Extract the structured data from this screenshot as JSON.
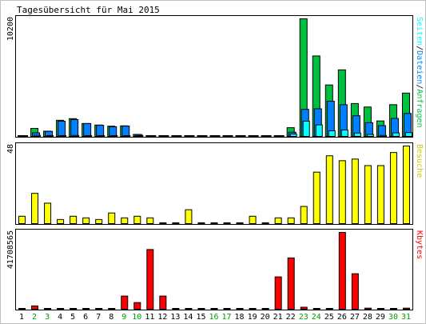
{
  "title": "Tagesübersicht für Mai 2015",
  "colors": {
    "hits": "#00c040",
    "files": "#0080ff",
    "pages": "#00ffff",
    "visits": "#ffff00",
    "kbytes": "#ff0000",
    "weekday_label": "#000000",
    "weekend_label": "#00a000"
  },
  "chart_data": [
    {
      "type": "bar",
      "name": "hits-files-pages",
      "ymax_label": "10200",
      "ylim": [
        0,
        10200
      ],
      "right_label_parts": [
        {
          "text": "Seiten",
          "color": "#00ffff"
        },
        {
          "text": "/",
          "color": "#000000"
        },
        {
          "text": "Dateien",
          "color": "#0080ff"
        },
        {
          "text": "/",
          "color": "#000000"
        },
        {
          "text": "Anfragen",
          "color": "#00c040"
        }
      ],
      "categories": [
        "1",
        "2",
        "3",
        "4",
        "5",
        "6",
        "7",
        "8",
        "9",
        "10",
        "11",
        "12",
        "13",
        "14",
        "15",
        "16",
        "17",
        "18",
        "19",
        "20",
        "21",
        "22",
        "23",
        "24",
        "25",
        "26",
        "27",
        "28",
        "29",
        "30",
        "31"
      ],
      "series": [
        {
          "key": "hits",
          "values": [
            120,
            760,
            520,
            1460,
            1600,
            1180,
            1050,
            950,
            980,
            240,
            80,
            80,
            80,
            80,
            80,
            80,
            80,
            80,
            80,
            80,
            80,
            820,
            10200,
            7000,
            4500,
            5800,
            2900,
            2600,
            1400,
            2800,
            3800
          ]
        },
        {
          "key": "files",
          "values": [
            100,
            380,
            500,
            1380,
            1520,
            1180,
            1030,
            900,
            960,
            230,
            60,
            60,
            60,
            60,
            60,
            60,
            60,
            60,
            60,
            60,
            60,
            430,
            2400,
            2450,
            3100,
            2800,
            1850,
            1250,
            1000,
            1620,
            2050
          ]
        },
        {
          "key": "pages",
          "values": [
            40,
            160,
            120,
            120,
            150,
            110,
            100,
            90,
            90,
            40,
            30,
            30,
            30,
            30,
            30,
            30,
            30,
            30,
            30,
            30,
            30,
            270,
            1380,
            1060,
            550,
            620,
            360,
            240,
            150,
            370,
            400
          ]
        }
      ]
    },
    {
      "type": "bar",
      "name": "visits",
      "ymax_label": "48",
      "ylim": [
        0,
        48
      ],
      "right_label_parts": [
        {
          "text": "Besuche",
          "color": "#cccc00"
        }
      ],
      "categories": [
        "1",
        "2",
        "3",
        "4",
        "5",
        "6",
        "7",
        "8",
        "9",
        "10",
        "11",
        "12",
        "13",
        "14",
        "15",
        "16",
        "17",
        "18",
        "19",
        "20",
        "21",
        "22",
        "23",
        "24",
        "25",
        "26",
        "27",
        "28",
        "29",
        "30",
        "31"
      ],
      "series": [
        {
          "key": "visits",
          "values": [
            5,
            19,
            13,
            3,
            5,
            4,
            3,
            7,
            4,
            5,
            4,
            0,
            0,
            9,
            0,
            0,
            1,
            1,
            5,
            0,
            4,
            4,
            11,
            32,
            42,
            39,
            40,
            36,
            36,
            44,
            48
          ]
        }
      ]
    },
    {
      "type": "bar",
      "name": "kbytes",
      "ymax_label": "41708565",
      "ylim": [
        0,
        41708565
      ],
      "right_label_parts": [
        {
          "text": "Kbytes",
          "color": "#ff0000"
        }
      ],
      "categories": [
        "1",
        "2",
        "3",
        "4",
        "5",
        "6",
        "7",
        "8",
        "9",
        "10",
        "11",
        "12",
        "13",
        "14",
        "15",
        "16",
        "17",
        "18",
        "19",
        "20",
        "21",
        "22",
        "23",
        "24",
        "25",
        "26",
        "27",
        "28",
        "29",
        "30",
        "31"
      ],
      "series": [
        {
          "key": "kbytes",
          "values": [
            500000,
            2200000,
            600000,
            500000,
            500000,
            500000,
            500000,
            500000,
            7500000,
            4000000,
            32500000,
            7500000,
            500000,
            500000,
            500000,
            500000,
            500000,
            500000,
            500000,
            500000,
            17800000,
            28000000,
            1500000,
            500000,
            500000,
            41708565,
            19500000,
            1000000,
            500000,
            500000,
            1000000
          ]
        }
      ]
    }
  ],
  "x_labels": [
    {
      "text": "1",
      "weekend": false
    },
    {
      "text": "2",
      "weekend": true
    },
    {
      "text": "3",
      "weekend": true
    },
    {
      "text": "4",
      "weekend": false
    },
    {
      "text": "5",
      "weekend": false
    },
    {
      "text": "6",
      "weekend": false
    },
    {
      "text": "7",
      "weekend": false
    },
    {
      "text": "8",
      "weekend": false
    },
    {
      "text": "9",
      "weekend": true
    },
    {
      "text": "10",
      "weekend": true
    },
    {
      "text": "11",
      "weekend": false
    },
    {
      "text": "12",
      "weekend": false
    },
    {
      "text": "13",
      "weekend": false
    },
    {
      "text": "14",
      "weekend": false
    },
    {
      "text": "15",
      "weekend": false
    },
    {
      "text": "16",
      "weekend": true
    },
    {
      "text": "17",
      "weekend": true
    },
    {
      "text": "18",
      "weekend": false
    },
    {
      "text": "19",
      "weekend": false
    },
    {
      "text": "20",
      "weekend": false
    },
    {
      "text": "21",
      "weekend": false
    },
    {
      "text": "22",
      "weekend": false
    },
    {
      "text": "23",
      "weekend": true
    },
    {
      "text": "24",
      "weekend": true
    },
    {
      "text": "25",
      "weekend": false
    },
    {
      "text": "26",
      "weekend": false
    },
    {
      "text": "27",
      "weekend": false
    },
    {
      "text": "28",
      "weekend": false
    },
    {
      "text": "29",
      "weekend": false
    },
    {
      "text": "30",
      "weekend": true
    },
    {
      "text": "31",
      "weekend": true
    }
  ]
}
